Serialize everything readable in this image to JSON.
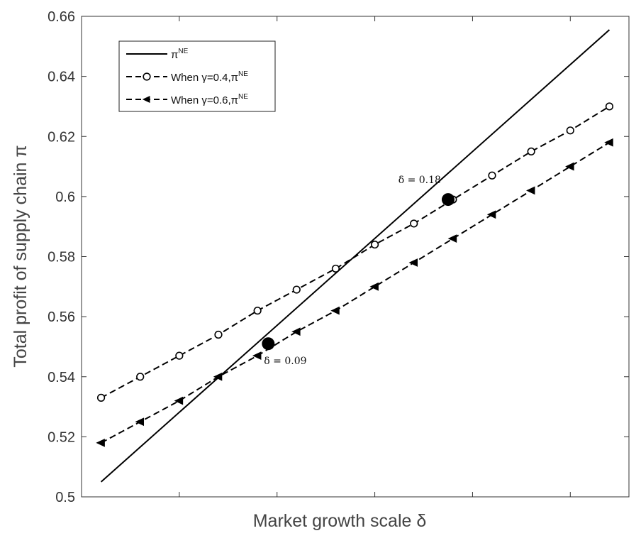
{
  "chart_data": {
    "type": "line",
    "title": "",
    "xlabel": "Market growth scale δ",
    "ylabel": "Total profit of supply chain π",
    "xlim": [
      0,
      0.28
    ],
    "ylim": [
      0.5,
      0.66
    ],
    "x_ticks": [
      0.05,
      0.1,
      0.15,
      0.2,
      0.25
    ],
    "x_tick_labels_visible": false,
    "y_ticks": [
      0.5,
      0.52,
      0.54,
      0.56,
      0.58,
      0.6,
      0.62,
      0.64,
      0.66
    ],
    "y_tick_labels": [
      "0.5",
      "0.52",
      "0.54",
      "0.56",
      "0.58",
      "0.6",
      "0.62",
      "0.64",
      "0.66"
    ],
    "grid": false,
    "legend": {
      "position": "top-left",
      "entries": [
        {
          "prefix": "",
          "base": "π",
          "sup": "NE"
        },
        {
          "prefix": "When γ=0.4,",
          "base": "π",
          "sup": "NE"
        },
        {
          "prefix": "When γ=0.6,",
          "base": "π",
          "sup": "NE"
        }
      ]
    },
    "series": [
      {
        "style": "solid",
        "marker": "none",
        "color": "#000000",
        "x": [
          0.01,
          0.27
        ],
        "y": [
          0.505,
          0.6555
        ]
      },
      {
        "style": "dashed",
        "marker": "circle",
        "color": "#000000",
        "x": [
          0.01,
          0.03,
          0.05,
          0.07,
          0.09,
          0.11,
          0.13,
          0.15,
          0.17,
          0.19,
          0.21,
          0.23,
          0.25,
          0.27
        ],
        "y": [
          0.533,
          0.54,
          0.547,
          0.554,
          0.562,
          0.569,
          0.576,
          0.584,
          0.591,
          0.599,
          0.607,
          0.615,
          0.622,
          0.63
        ]
      },
      {
        "style": "dashed",
        "marker": "triangle-left",
        "color": "#000000",
        "x": [
          0.01,
          0.03,
          0.05,
          0.07,
          0.09,
          0.11,
          0.13,
          0.15,
          0.17,
          0.19,
          0.21,
          0.23,
          0.25,
          0.27
        ],
        "y": [
          0.518,
          0.525,
          0.532,
          0.54,
          0.547,
          0.555,
          0.562,
          0.57,
          0.578,
          0.586,
          0.594,
          0.602,
          0.61,
          0.618
        ]
      }
    ],
    "annotations": [
      {
        "text": "δ = 0.09",
        "x": 0.0955,
        "y": 0.551,
        "label_side": "below-right"
      },
      {
        "text": "δ = 0.18",
        "x": 0.1875,
        "y": 0.599,
        "label_side": "above-left"
      }
    ]
  }
}
